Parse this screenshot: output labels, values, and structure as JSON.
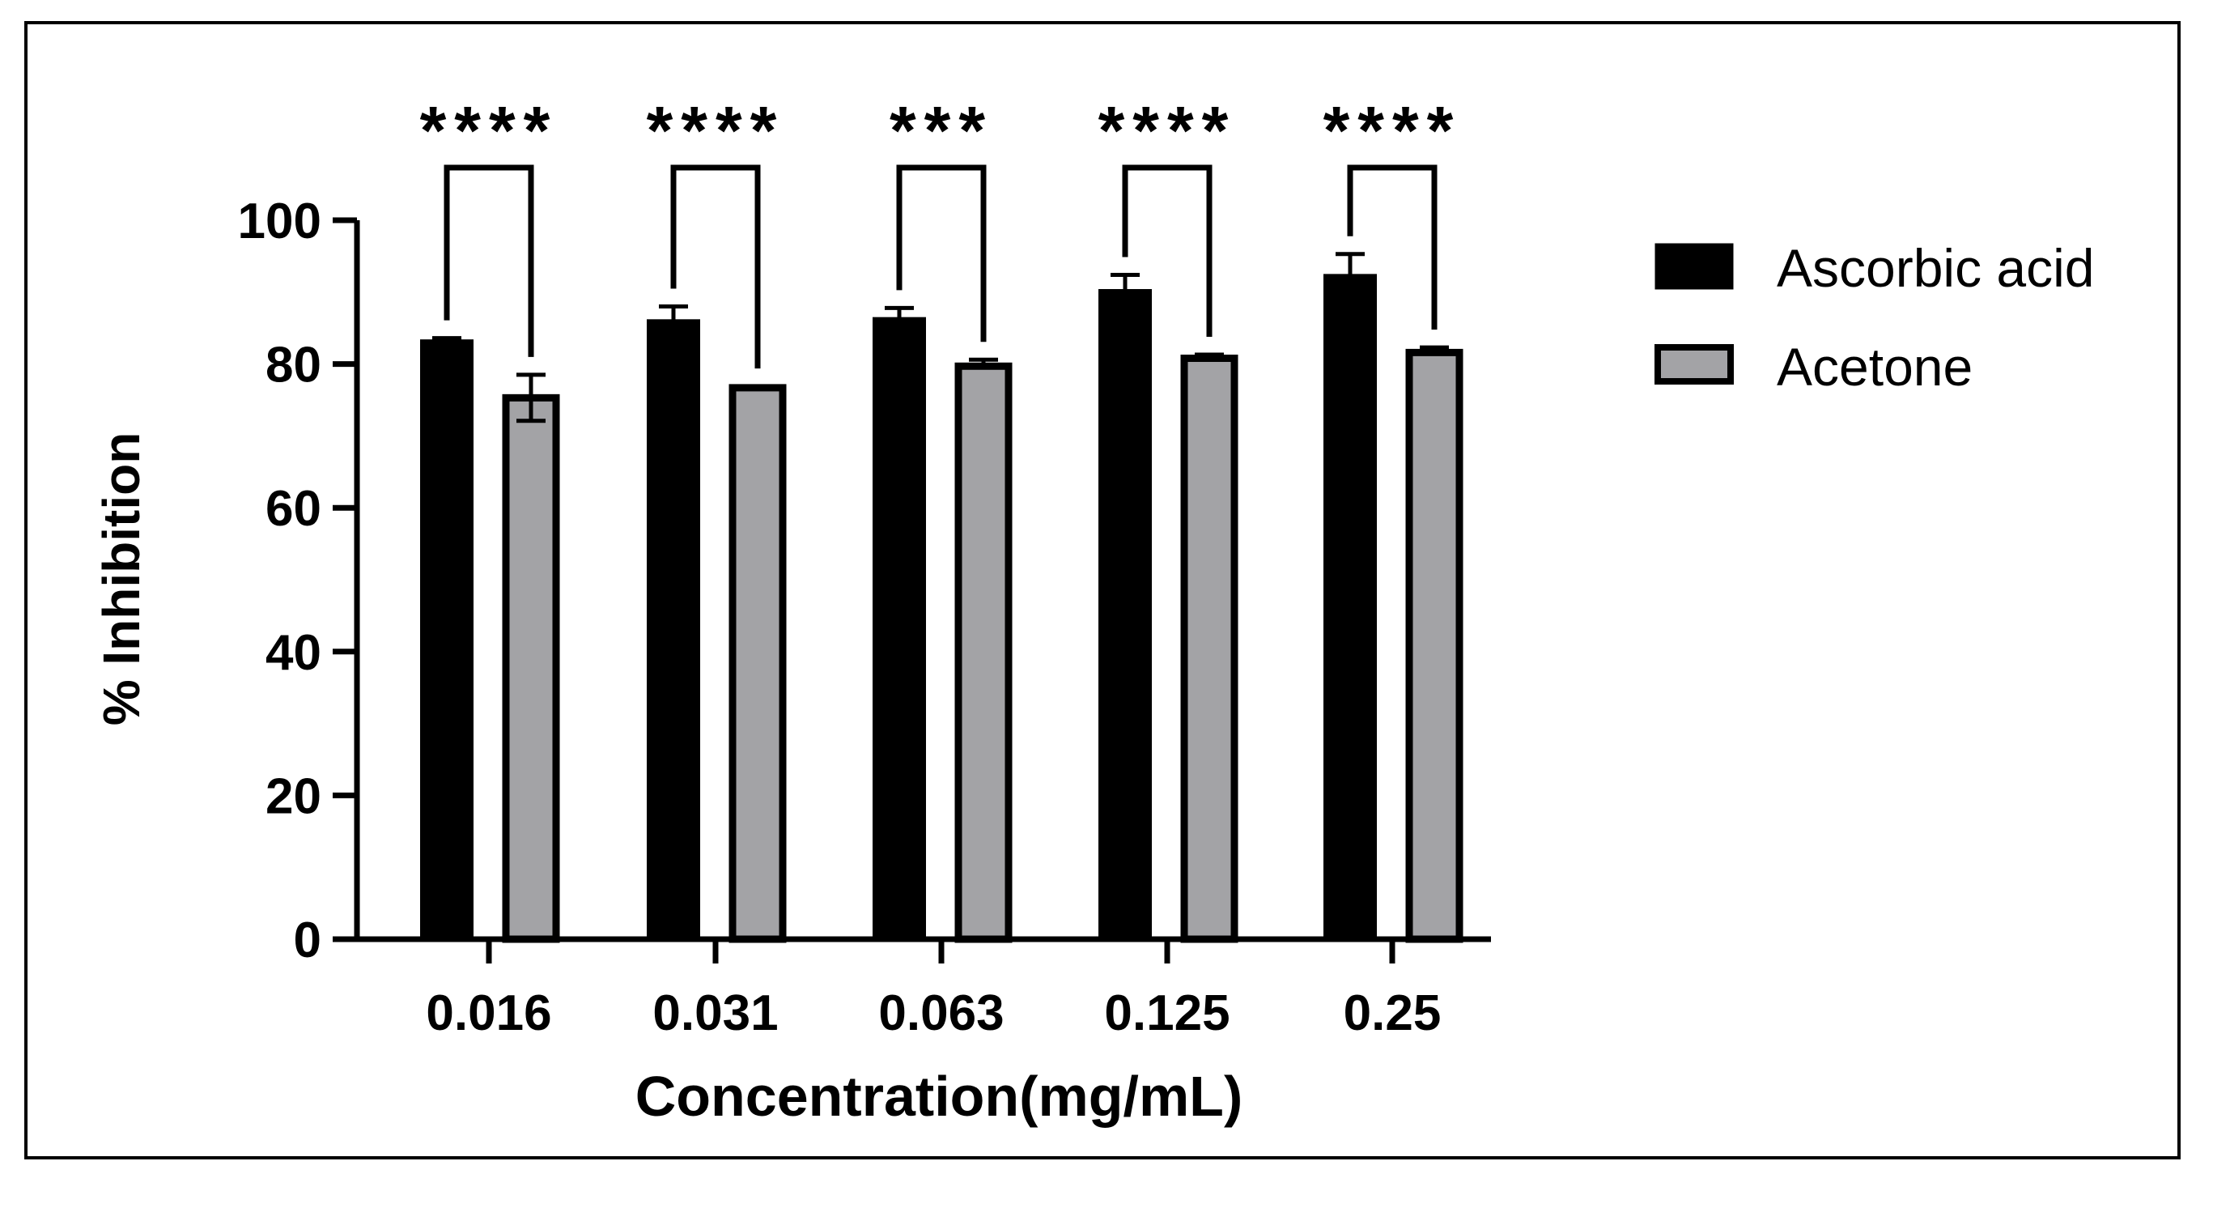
{
  "chart_data": {
    "type": "bar",
    "title": "",
    "xlabel": "Concentration(mg/mL)",
    "ylabel": "% Inhibition",
    "ylim": [
      0,
      100
    ],
    "yticks": [
      "0",
      "20",
      "40",
      "60",
      "80",
      "100"
    ],
    "categories": [
      "0.016",
      "0.031",
      "0.063",
      "0.125",
      "0.25"
    ],
    "series": [
      {
        "name": "Ascorbic acid",
        "color": "#000000",
        "values": [
          83.2,
          86.0,
          86.3,
          90.2,
          92.3
        ],
        "errors": [
          0.4,
          2.0,
          1.5,
          2.2,
          3.0
        ]
      },
      {
        "name": "Acetone",
        "color": "#a3a3a6",
        "values": [
          75.3,
          76.7,
          79.7,
          80.8,
          81.6
        ],
        "errors": [
          3.2,
          0.2,
          0.9,
          0.5,
          0.7
        ]
      }
    ],
    "significance": [
      "****",
      "****",
      "***",
      "****",
      "****"
    ],
    "legend_position": "right"
  }
}
